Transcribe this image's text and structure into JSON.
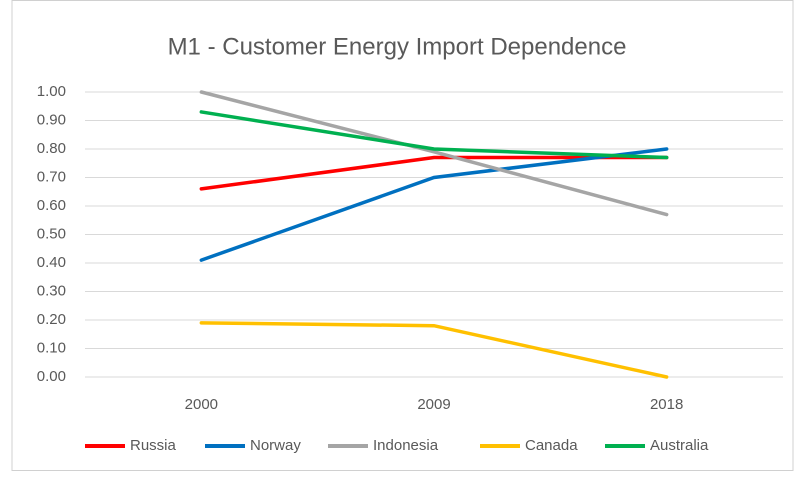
{
  "chart_data": {
    "type": "line",
    "title": "M1 - Customer Energy Import Dependence",
    "categories": [
      "2000",
      "2009",
      "2018"
    ],
    "series": [
      {
        "name": "Russia",
        "color": "#ff0000",
        "values": [
          0.66,
          0.77,
          0.77
        ]
      },
      {
        "name": "Norway",
        "color": "#0070c0",
        "values": [
          0.41,
          0.7,
          0.8
        ]
      },
      {
        "name": "Indonesia",
        "color": "#a5a5a5",
        "values": [
          1.0,
          0.79,
          0.57
        ]
      },
      {
        "name": "Canada",
        "color": "#ffc000",
        "values": [
          0.19,
          0.18,
          0.0
        ]
      },
      {
        "name": "Australia",
        "color": "#00b050",
        "values": [
          0.93,
          0.8,
          0.77
        ]
      }
    ],
    "ylim": [
      0,
      1
    ],
    "yticks": [
      {
        "value": 0,
        "label": "0.00"
      },
      {
        "value": 0.1,
        "label": "0.10"
      },
      {
        "value": 0.2,
        "label": "0.20"
      },
      {
        "value": 0.3,
        "label": "0.30"
      },
      {
        "value": 0.4,
        "label": "0.40"
      },
      {
        "value": 0.5,
        "label": "0.50"
      },
      {
        "value": 0.6,
        "label": "0.60"
      },
      {
        "value": 0.7,
        "label": "0.70"
      },
      {
        "value": 0.8,
        "label": "0.80"
      },
      {
        "value": 0.9,
        "label": "0.90"
      },
      {
        "value": 1,
        "label": "1.00"
      }
    ],
    "grid": true,
    "legend": "bottom"
  }
}
